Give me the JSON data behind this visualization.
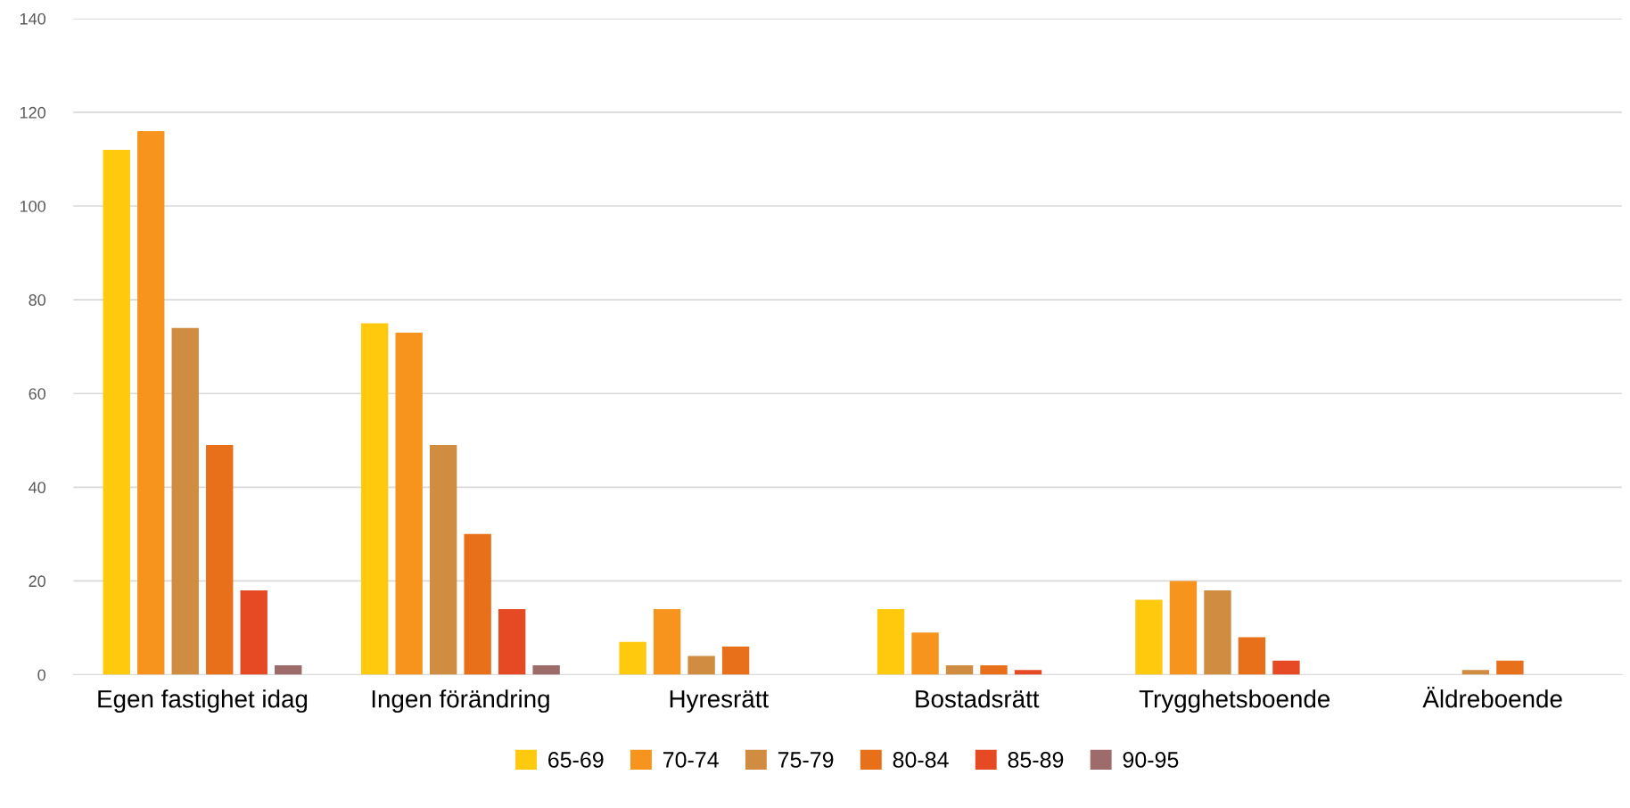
{
  "chart_data": {
    "type": "bar",
    "categories": [
      "Egen fastighet idag",
      "Ingen förändring",
      "Hyresrätt",
      "Bostadsrätt",
      "Trygghetsboende",
      "Äldreboende"
    ],
    "series": [
      {
        "name": "65-69",
        "color": "#ffc90e",
        "values": [
          112,
          75,
          7,
          14,
          16,
          0
        ]
      },
      {
        "name": "70-74",
        "color": "#f7941d",
        "values": [
          116,
          73,
          14,
          9,
          20,
          0
        ]
      },
      {
        "name": "75-79",
        "color": "#d08c40",
        "values": [
          74,
          49,
          4,
          2,
          18,
          1
        ]
      },
      {
        "name": "80-84",
        "color": "#e8701a",
        "values": [
          49,
          30,
          6,
          2,
          8,
          3
        ]
      },
      {
        "name": "85-89",
        "color": "#e64a25",
        "values": [
          18,
          14,
          0,
          1,
          3,
          0
        ]
      },
      {
        "name": "90-95",
        "color": "#9e6b6b",
        "values": [
          2,
          2,
          0,
          0,
          0,
          0
        ]
      }
    ],
    "ylim": [
      0,
      140
    ],
    "yticks": [
      0,
      20,
      40,
      60,
      80,
      100,
      120,
      140
    ],
    "grid": "y",
    "legend": "bottom"
  }
}
